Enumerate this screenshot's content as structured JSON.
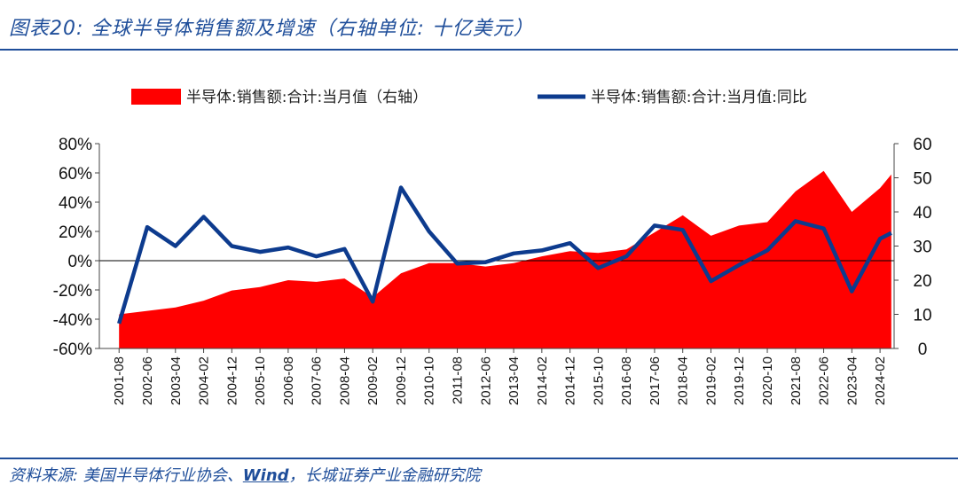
{
  "header": {
    "title": "图表20: 全球半导体销售额及增速（右轴单位: 十亿美元）"
  },
  "footer": {
    "source_prefix": "资料来源: 美国半导体行业协会、",
    "source_wind": "Wind",
    "source_suffix": "，长城证券产业金融研究院"
  },
  "colors": {
    "area": "#ff0000",
    "line": "#0d3b8e",
    "accent": "#1f4e9a"
  },
  "chart_data": {
    "type": "area",
    "legend": [
      "半导体:销售额:合计:当月值（右轴）",
      "半导体:销售额:合计:当月值:同比"
    ],
    "legend_position": "top",
    "x_tick_labels": [
      "2001-08",
      "2002-06",
      "2003-04",
      "2004-02",
      "2004-12",
      "2005-10",
      "2006-08",
      "2007-06",
      "2008-04",
      "2009-02",
      "2009-12",
      "2010-10",
      "2011-08",
      "2012-06",
      "2013-04",
      "2014-02",
      "2014-12",
      "2015-10",
      "2016-08",
      "2017-06",
      "2018-04",
      "2019-02",
      "2019-12",
      "2020-10",
      "2021-08",
      "2022-06",
      "2023-04",
      "2024-02"
    ],
    "y_left": {
      "min": -60,
      "max": 80,
      "step": 20,
      "unit": "%",
      "ticks": [
        "80%",
        "60%",
        "40%",
        "20%",
        "0%",
        "-20%",
        "-40%",
        "-60%"
      ]
    },
    "y_right": {
      "min": 0,
      "max": 60,
      "step": 10,
      "ticks": [
        "60",
        "50",
        "40",
        "30",
        "20",
        "10",
        "0"
      ]
    },
    "series": [
      {
        "name": "半导体:销售额:合计:当月值（右轴）",
        "axis": "right",
        "points": [
          [
            "2001-08",
            10
          ],
          [
            "2002-06",
            11
          ],
          [
            "2003-04",
            12
          ],
          [
            "2004-02",
            14
          ],
          [
            "2004-12",
            17
          ],
          [
            "2005-10",
            18
          ],
          [
            "2006-08",
            20
          ],
          [
            "2007-06",
            19.5
          ],
          [
            "2008-04",
            20.5
          ],
          [
            "2009-02",
            15
          ],
          [
            "2009-12",
            22
          ],
          [
            "2010-10",
            25
          ],
          [
            "2011-08",
            25
          ],
          [
            "2012-06",
            24
          ],
          [
            "2013-04",
            25
          ],
          [
            "2014-02",
            27
          ],
          [
            "2014-12",
            28.5
          ],
          [
            "2015-10",
            28
          ],
          [
            "2016-08",
            29
          ],
          [
            "2017-06",
            34
          ],
          [
            "2018-04",
            39
          ],
          [
            "2019-02",
            33
          ],
          [
            "2019-12",
            36
          ],
          [
            "2020-10",
            37
          ],
          [
            "2021-08",
            46
          ],
          [
            "2022-06",
            52
          ],
          [
            "2023-04",
            40
          ],
          [
            "2024-02",
            47
          ],
          [
            "2024-06",
            51
          ]
        ]
      },
      {
        "name": "半导体:销售额:合计:当月值:同比",
        "axis": "left",
        "points": [
          [
            "2001-08",
            -43
          ],
          [
            "2002-06",
            23
          ],
          [
            "2003-04",
            10
          ],
          [
            "2004-02",
            30
          ],
          [
            "2004-12",
            10
          ],
          [
            "2005-10",
            6
          ],
          [
            "2006-08",
            9
          ],
          [
            "2007-06",
            3
          ],
          [
            "2008-04",
            8
          ],
          [
            "2009-02",
            -28
          ],
          [
            "2009-12",
            50
          ],
          [
            "2010-10",
            20
          ],
          [
            "2011-08",
            -2
          ],
          [
            "2012-06",
            -1
          ],
          [
            "2013-04",
            5
          ],
          [
            "2014-02",
            7
          ],
          [
            "2014-12",
            12
          ],
          [
            "2015-10",
            -5
          ],
          [
            "2016-08",
            3
          ],
          [
            "2017-06",
            24
          ],
          [
            "2018-04",
            21
          ],
          [
            "2019-02",
            -14
          ],
          [
            "2019-12",
            -3
          ],
          [
            "2020-10",
            7
          ],
          [
            "2021-08",
            27
          ],
          [
            "2022-06",
            22
          ],
          [
            "2023-04",
            -21
          ],
          [
            "2024-02",
            15
          ],
          [
            "2024-06",
            19
          ]
        ]
      }
    ]
  }
}
